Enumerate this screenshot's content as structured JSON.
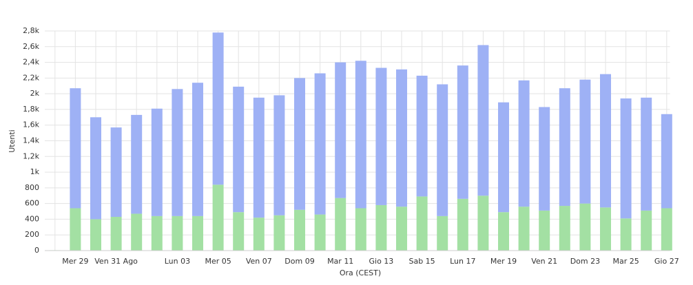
{
  "chart_data": {
    "type": "stacked_bar",
    "x_label": "Ora (CEST)",
    "y_label": "Utenti",
    "categories": [
      null,
      "Mer 29",
      null,
      "Ven 31 Ago",
      null,
      null,
      "Lun 03",
      null,
      "Mer 05",
      null,
      "Ven 07",
      null,
      "Dom 09",
      null,
      "Mar 11",
      null,
      "Gio 13",
      null,
      "Sab 15",
      null,
      "Lun 17",
      null,
      "Mer 19",
      null,
      "Ven 21",
      null,
      "Dom 23",
      null,
      "Mar 25",
      null,
      "Gio 27"
    ],
    "series": [
      {
        "color": "#a3e0a3",
        "values": [
          5,
          540,
          400,
          430,
          470,
          440,
          440,
          440,
          840,
          490,
          420,
          450,
          520,
          460,
          670,
          540,
          580,
          560,
          690,
          440,
          660,
          700,
          490,
          560,
          510,
          570,
          600,
          550,
          410,
          510,
          540
        ]
      },
      {
        "color": "#9eb1f5",
        "values": [
          0,
          1530,
          1300,
          1140,
          1260,
          1370,
          1620,
          1700,
          1940,
          1600,
          1530,
          1530,
          1680,
          1800,
          1730,
          1880,
          1750,
          1750,
          1540,
          1680,
          1700,
          1920,
          1400,
          1610,
          1320,
          1500,
          1580,
          1700,
          1530,
          1440,
          1200
        ]
      }
    ],
    "ylim": [
      0,
      2800
    ],
    "yticks": [
      0,
      200,
      400,
      600,
      800,
      {
        "value": 1000,
        "label": "1k"
      },
      {
        "value": 1200,
        "label": "1,2k"
      },
      {
        "value": 1400,
        "label": "1,4k"
      },
      {
        "value": 1600,
        "label": "1,6k"
      },
      {
        "value": 1800,
        "label": "1,8k"
      },
      {
        "value": 2000,
        "label": "2k"
      },
      {
        "value": 2200,
        "label": "2,2k"
      },
      {
        "value": 2400,
        "label": "2,4k"
      },
      {
        "value": 2600,
        "label": "2,6k"
      },
      {
        "value": 2800,
        "label": "2,8k"
      }
    ],
    "grid": true
  }
}
